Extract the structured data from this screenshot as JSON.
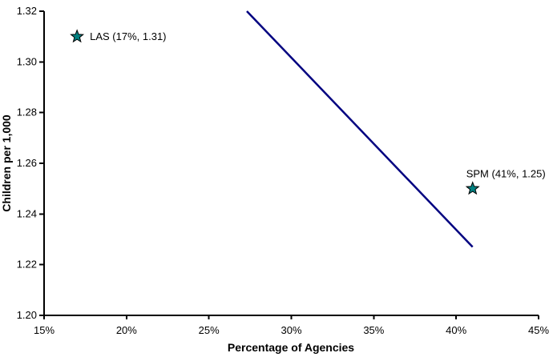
{
  "chart_data": {
    "type": "scatter",
    "title": "",
    "xlabel": "Percentage of Agencies",
    "ylabel": "Children per 1,000",
    "xlim": [
      15,
      45
    ],
    "ylim": [
      1.2,
      1.32
    ],
    "grid": false,
    "legend": false,
    "x_ticks": [
      {
        "value": 15,
        "label": "15%"
      },
      {
        "value": 20,
        "label": "20%"
      },
      {
        "value": 25,
        "label": "25%"
      },
      {
        "value": 30,
        "label": "30%"
      },
      {
        "value": 35,
        "label": "35%"
      },
      {
        "value": 40,
        "label": "40%"
      },
      {
        "value": 45,
        "label": "45%"
      }
    ],
    "y_ticks": [
      {
        "value": 1.2,
        "label": "1.20"
      },
      {
        "value": 1.22,
        "label": "1.22"
      },
      {
        "value": 1.24,
        "label": "1.24"
      },
      {
        "value": 1.26,
        "label": "1.26"
      },
      {
        "value": 1.28,
        "label": "1.28"
      },
      {
        "value": 1.3,
        "label": "1.30"
      },
      {
        "value": 1.32,
        "label": "1.32"
      }
    ],
    "points": [
      {
        "name": "LAS",
        "x": 17,
        "y": 1.31,
        "label": "LAS (17%, 1.31)",
        "label_position": "right",
        "marker": "star",
        "marker_color": "#008080"
      },
      {
        "name": "SPM",
        "x": 41,
        "y": 1.25,
        "label": "SPM (41%, 1.25)",
        "label_position": "above",
        "marker": "star",
        "marker_color": "#008080"
      }
    ],
    "trend_line": {
      "style": "solid",
      "color": "#000080",
      "points": [
        {
          "x": 27.3,
          "y": 1.32
        },
        {
          "x": 41.0,
          "y": 1.227
        }
      ]
    },
    "colors": {
      "background": "#ffffff",
      "axis": "#000000",
      "text": "#000000",
      "marker_fill": "#008080",
      "marker_stroke": "#000000",
      "trend_line": "#000080"
    }
  }
}
